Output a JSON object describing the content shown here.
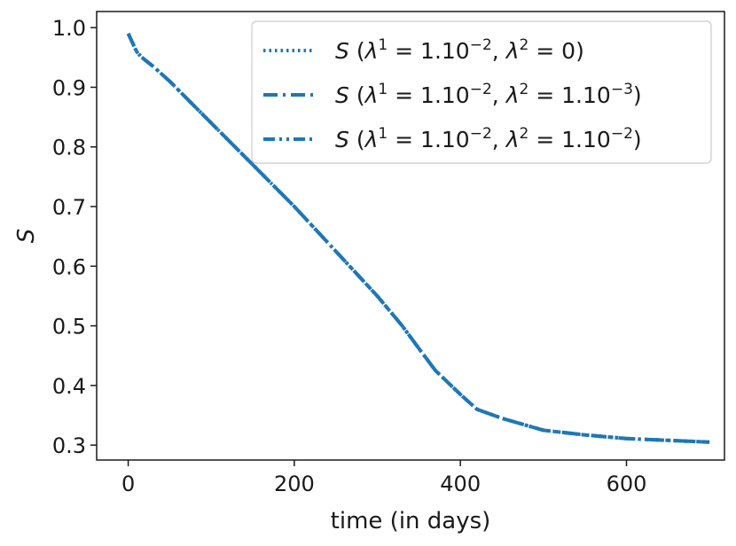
{
  "chart_data": {
    "type": "line",
    "xlabel": "time (in days)",
    "ylabel": "S",
    "xlim": [
      -38,
      718
    ],
    "ylim": [
      0.275,
      1.027
    ],
    "xticks": [
      0,
      200,
      400,
      600
    ],
    "yticks": [
      0.3,
      0.4,
      0.5,
      0.6,
      0.7,
      0.8,
      0.9,
      1.0
    ],
    "xtick_labels": [
      "0",
      "200",
      "400",
      "600"
    ],
    "ytick_labels": [
      "0.3",
      "0.4",
      "0.5",
      "0.6",
      "0.7",
      "0.8",
      "0.9",
      "1.0"
    ],
    "grid": false,
    "legend_position": "top-right",
    "color": "#1f77b4",
    "x": [
      0,
      5,
      10,
      15,
      20,
      30,
      50,
      75,
      100,
      150,
      200,
      250,
      300,
      330,
      350,
      370,
      400,
      420,
      450,
      500,
      550,
      600,
      650,
      700
    ],
    "series": [
      {
        "name": "S (λ¹ = 1.10⁻², λ² = 0)",
        "legend": {
          "sym": "S",
          "l1": "λ",
          "s1": "1",
          "m1": " = 1.10",
          "e1": "−2",
          "c": ", ",
          "l2": "λ",
          "s2": "2",
          "m2": " = 0",
          "e2": "",
          "end": ")"
        },
        "linestyle": "dotted",
        "values": [
          0.99,
          0.975,
          0.96,
          0.952,
          0.946,
          0.935,
          0.91,
          0.875,
          0.84,
          0.77,
          0.7,
          0.625,
          0.55,
          0.5,
          0.462,
          0.425,
          0.385,
          0.36,
          0.345,
          0.325,
          0.317,
          0.311,
          0.308,
          0.305
        ]
      },
      {
        "name": "S (λ¹ = 1.10⁻², λ² = 1.10⁻³)",
        "legend": {
          "sym": "S",
          "l1": "λ",
          "s1": "1",
          "m1": " = 1.10",
          "e1": "−2",
          "c": ", ",
          "l2": "λ",
          "s2": "2",
          "m2": " = 1.10",
          "e2": "−3",
          "end": ")"
        },
        "linestyle": "dashdot",
        "values": [
          0.99,
          0.975,
          0.96,
          0.952,
          0.946,
          0.935,
          0.91,
          0.875,
          0.84,
          0.77,
          0.7,
          0.625,
          0.55,
          0.5,
          0.462,
          0.425,
          0.385,
          0.36,
          0.345,
          0.325,
          0.317,
          0.311,
          0.308,
          0.305
        ]
      },
      {
        "name": "S (λ¹ = 1.10⁻², λ² = 1.10⁻²)",
        "legend": {
          "sym": "S",
          "l1": "λ",
          "s1": "1",
          "m1": " = 1.10",
          "e1": "−2",
          "c": ", ",
          "l2": "λ",
          "s2": "2",
          "m2": " = 1.10",
          "e2": "−2",
          "end": ")"
        },
        "linestyle": "dashdotdot",
        "values": [
          0.99,
          0.975,
          0.96,
          0.952,
          0.946,
          0.935,
          0.91,
          0.875,
          0.84,
          0.77,
          0.7,
          0.625,
          0.55,
          0.5,
          0.462,
          0.425,
          0.385,
          0.36,
          0.345,
          0.325,
          0.317,
          0.311,
          0.308,
          0.305
        ]
      }
    ]
  }
}
